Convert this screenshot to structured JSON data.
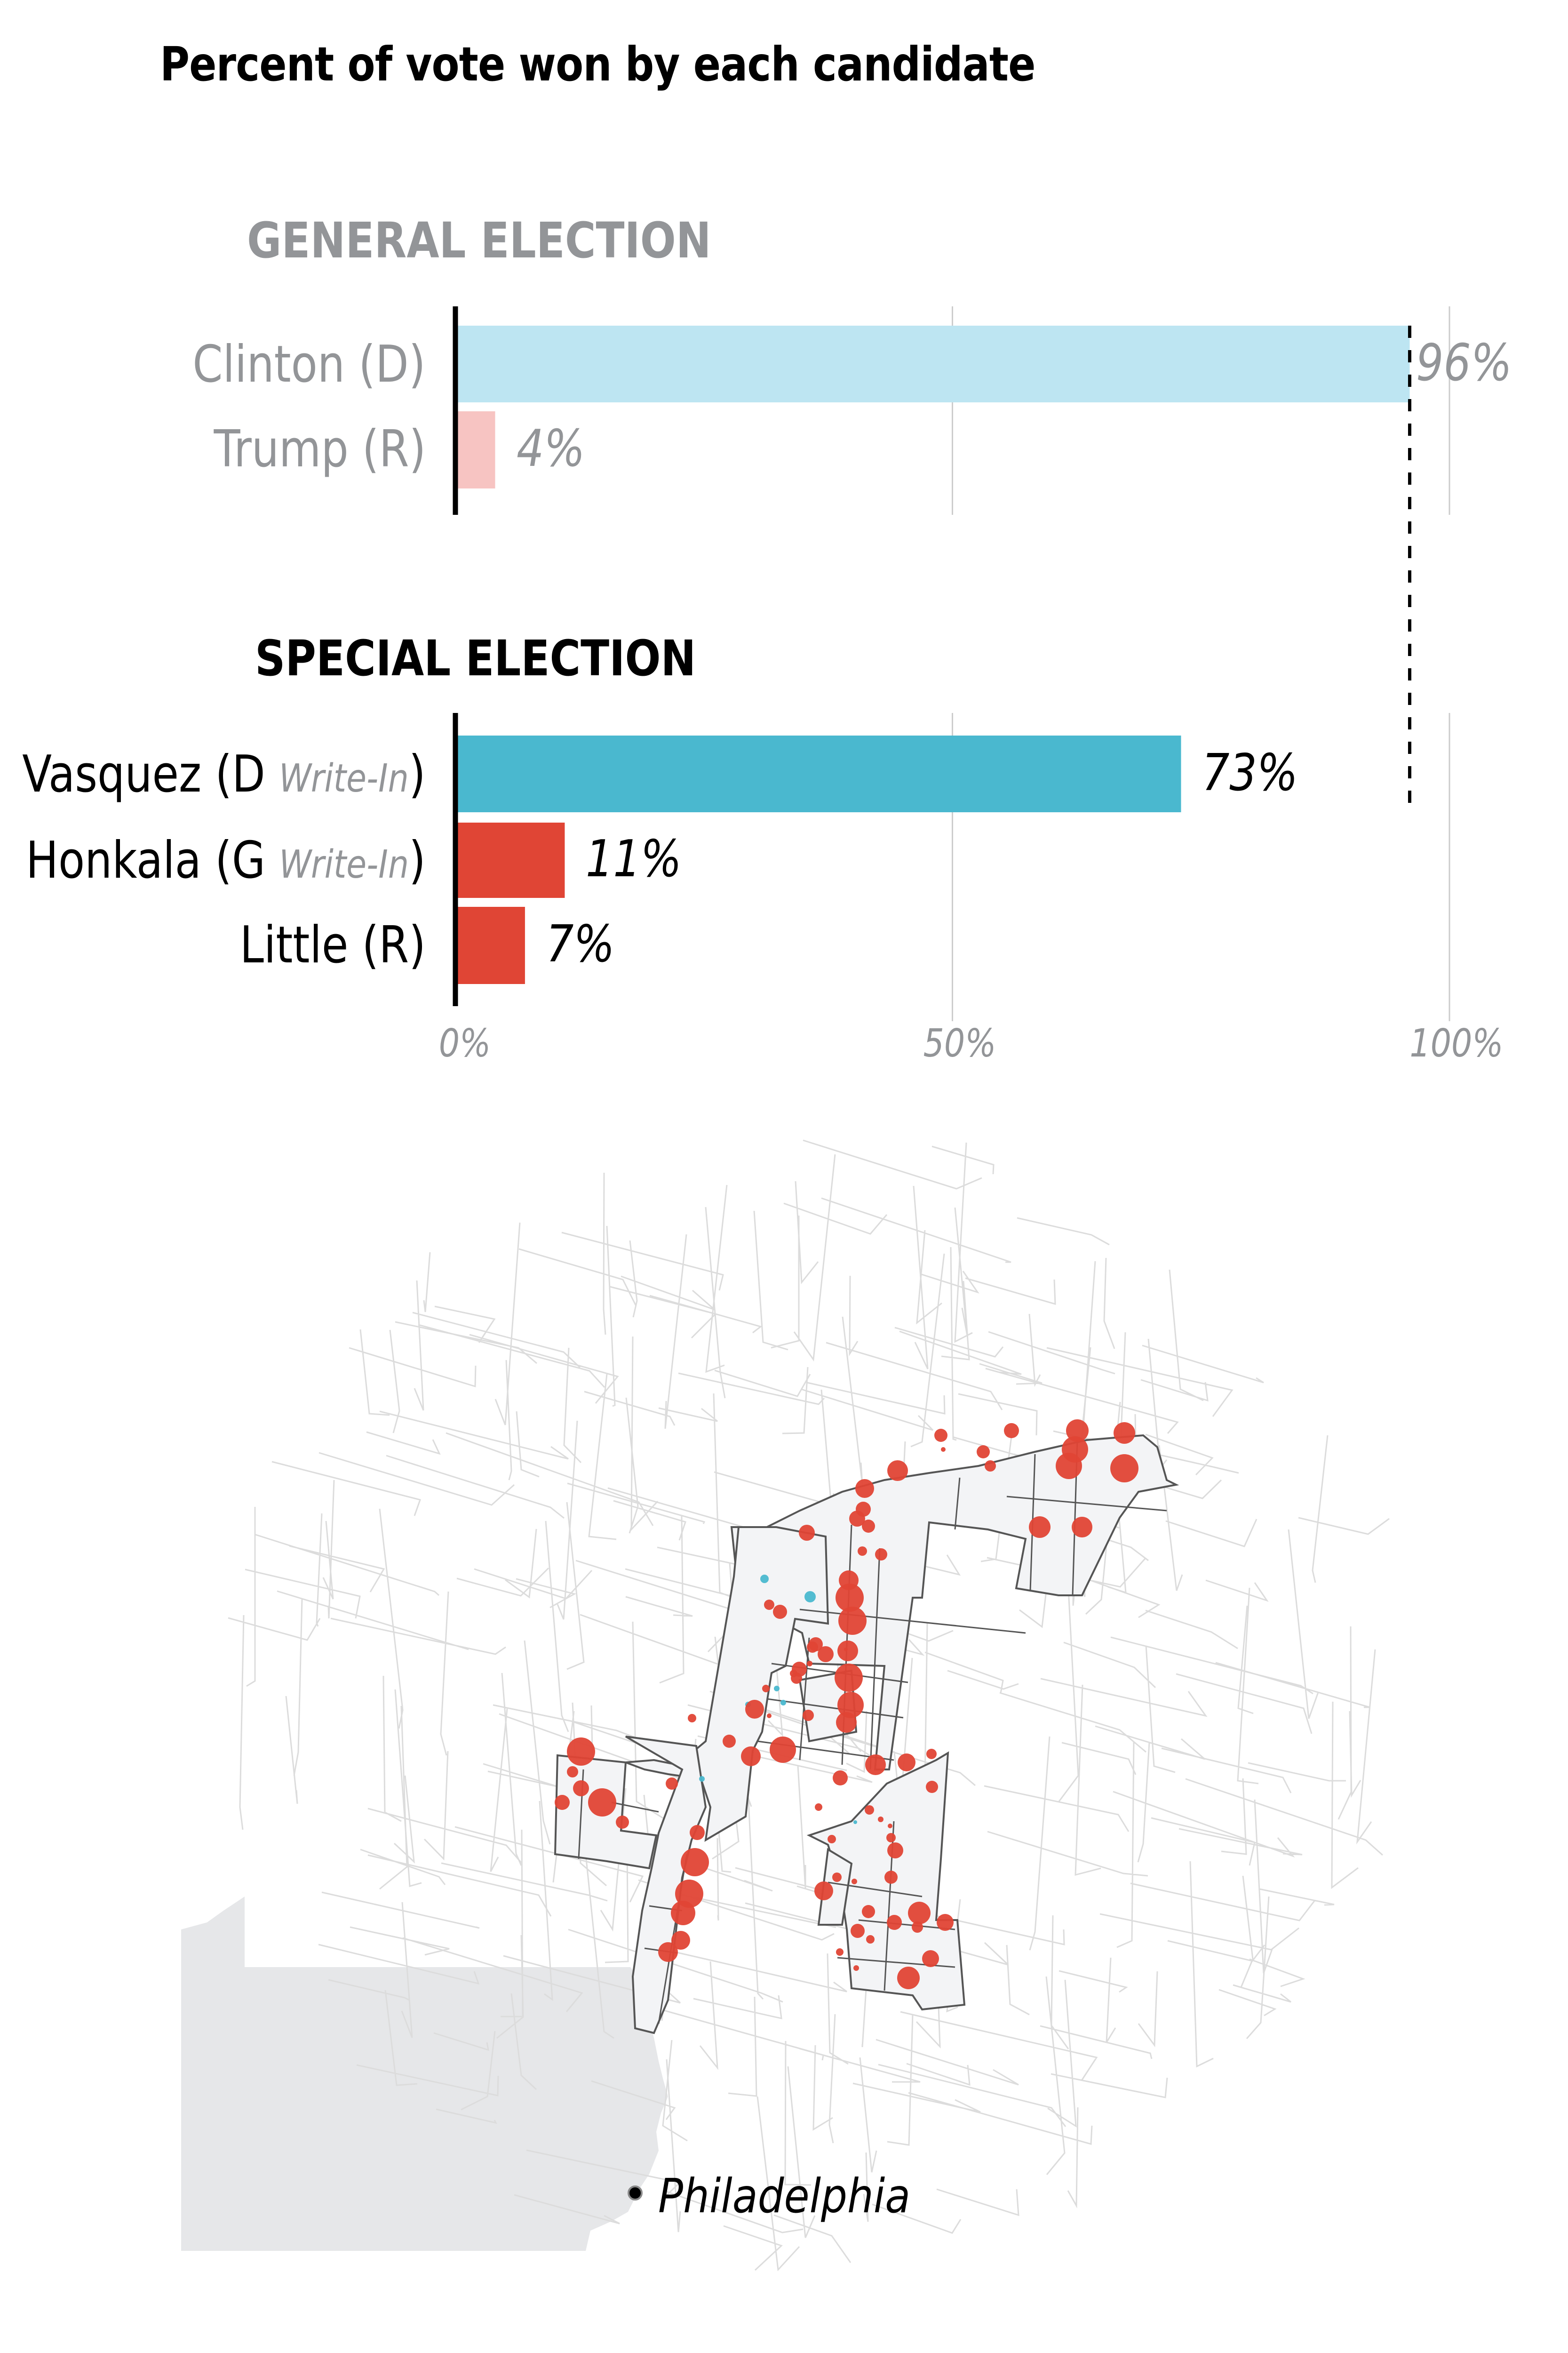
{
  "title": "Percent of vote won by each candidate",
  "colors": {
    "dem_light": "#bde5f2",
    "rep_light": "#f7c4c2",
    "dem": "#4ab8cf",
    "rep": "#e04535",
    "muted_text": "#939598",
    "gridline": "#cccccc",
    "map_street": "#dcdcdc",
    "map_district_fill": "#f3f4f6",
    "map_district_stroke": "#555555",
    "map_state_fill": "#e6e7e9"
  },
  "chart_data": {
    "type": "bar",
    "orientation": "horizontal",
    "title": "Percent of vote won by each candidate",
    "xlabel": "",
    "ylabel": "",
    "xlim": [
      0,
      100
    ],
    "x_ticks": [
      0,
      50,
      100
    ],
    "x_tick_labels": [
      "0%",
      "50%",
      "100%"
    ],
    "grid": true,
    "reference_line": {
      "value": 96,
      "style": "dashed",
      "spans": "both panels"
    },
    "panels": [
      {
        "heading": "GENERAL ELECTION",
        "muted": true,
        "bars": [
          {
            "name": "Clinton",
            "party": "D",
            "write_in": false,
            "value": 96,
            "label": "96%",
            "color": "#bde5f2"
          },
          {
            "name": "Trump",
            "party": "R",
            "write_in": false,
            "value": 4,
            "label": "4%",
            "color": "#f7c4c2"
          }
        ]
      },
      {
        "heading": "SPECIAL ELECTION",
        "muted": false,
        "bars": [
          {
            "name": "Vasquez",
            "party": "D",
            "write_in": true,
            "value": 73,
            "label": "73%",
            "color": "#4ab8cf"
          },
          {
            "name": "Honkala",
            "party": "G",
            "write_in": true,
            "value": 11,
            "label": "11%",
            "color": "#e04535"
          },
          {
            "name": "Little",
            "party": "R",
            "write_in": false,
            "value": 7,
            "label": "7%",
            "color": "#e04535"
          }
        ]
      }
    ]
  },
  "labels": {
    "general": {
      "heading": "GENERAL ELECTION",
      "rows": [
        {
          "main": "Clinton (D)",
          "writein": "",
          "close": ""
        },
        {
          "main": "Trump (R)",
          "writein": "",
          "close": ""
        }
      ]
    },
    "special": {
      "heading": "SPECIAL ELECTION",
      "rows": [
        {
          "main": "Vasquez (D ",
          "writein": "Write-In",
          "close": ")"
        },
        {
          "main": "Honkala (G ",
          "writein": "Write-In",
          "close": ")"
        },
        {
          "main": "Little (R)",
          "writein": "",
          "close": ""
        }
      ]
    },
    "values": [
      "96%",
      "4%",
      "73%",
      "11%",
      "7%"
    ],
    "ticks": [
      "0%",
      "50%",
      "100%"
    ]
  },
  "map": {
    "locator_label": "Philadelphia",
    "legend_semantics": "Circles sized by votes; red = Republican/Green-leaning precincts, blue = Democratic write-in leaning precincts"
  }
}
